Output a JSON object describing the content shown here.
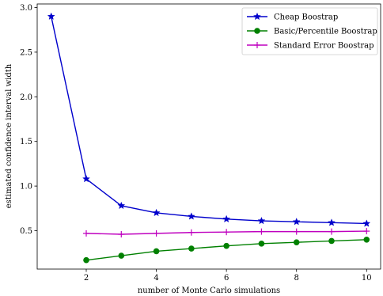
{
  "chart_data": {
    "type": "line",
    "title": "",
    "xlabel": "number of Monte Carlo simulations",
    "ylabel": "estimated confidence interval width",
    "xlim": [
      0.6,
      10.4
    ],
    "ylim": [
      0.07,
      3.04
    ],
    "xticks": [
      2,
      4,
      6,
      8,
      10
    ],
    "yticks": [
      0.5,
      1.0,
      1.5,
      2.0,
      2.5,
      3.0
    ],
    "xtick_labels": [
      "2",
      "4",
      "6",
      "8",
      "10"
    ],
    "ytick_labels": [
      "0.5",
      "1.0",
      "1.5",
      "2.0",
      "2.5",
      "3.0"
    ],
    "grid": false,
    "legend_position": "top-right",
    "series": [
      {
        "name": "Cheap Boostrap",
        "color": "#0000cc",
        "marker": "star",
        "x": [
          1,
          2,
          3,
          4,
          5,
          6,
          7,
          8,
          9,
          10
        ],
        "values": [
          2.9,
          1.08,
          0.78,
          0.7,
          0.66,
          0.63,
          0.61,
          0.6,
          0.59,
          0.58
        ]
      },
      {
        "name": "Basic/Percentile Boostrap",
        "color": "#008000",
        "marker": "circle",
        "x": [
          2,
          3,
          4,
          5,
          6,
          7,
          8,
          9,
          10
        ],
        "values": [
          0.17,
          0.22,
          0.27,
          0.3,
          0.33,
          0.355,
          0.37,
          0.385,
          0.4
        ]
      },
      {
        "name": "Standard Error Boostrap",
        "color": "#bf00bf",
        "marker": "plus",
        "x": [
          2,
          3,
          4,
          5,
          6,
          7,
          8,
          9,
          10
        ],
        "values": [
          0.47,
          0.46,
          0.47,
          0.48,
          0.485,
          0.49,
          0.49,
          0.49,
          0.495
        ]
      }
    ]
  }
}
